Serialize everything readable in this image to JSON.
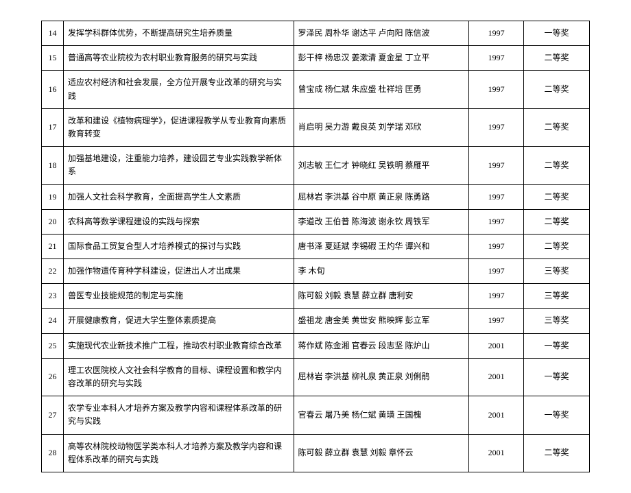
{
  "rows": [
    {
      "num": "14",
      "title": "发挥学科群体优势，不断提高研究生培养质量",
      "people": "罗泽民 周朴华 谢达平 卢向阳 陈信波",
      "year": "1997",
      "award": "一等奖"
    },
    {
      "num": "15",
      "title": "普通高等农业院校为农村职业教育服务的研究与实践",
      "people": "彭干梓 杨忠汉 姜漱清 夏金星 丁立平",
      "year": "1997",
      "award": "二等奖"
    },
    {
      "num": "16",
      "title": "适应农村经济和社会发展，全方位开展专业改革的研究与实践",
      "people": "曾宝成 杨仁斌 朱应盛 杜祥培 匡勇",
      "year": "1997",
      "award": "二等奖"
    },
    {
      "num": "17",
      "title": "改革和建设《植物病理学》，促进课程教学从专业教育向素质教育转变",
      "people": "肖启明 吴力游 戴良英 刘学瑞 邓欣",
      "year": "1997",
      "award": "二等奖"
    },
    {
      "num": "18",
      "title": "加强基地建设，注重能力培养，建设园艺专业实践教学新体系",
      "people": "刘志敏 王仁才 钟晓红 吴铁明 蔡雁平",
      "year": "1997",
      "award": "二等奖"
    },
    {
      "num": "19",
      "title": "加强人文社会科学教育，全面提高学生人文素质",
      "people": "屈林岩 李洪基 谷中原 黄正泉 陈勇路",
      "year": "1997",
      "award": "二等奖"
    },
    {
      "num": "20",
      "title": "农科高等数学课程建设的实践与探索",
      "people": "李道改 王伯普 陈海波 谢永钦 周铁军",
      "year": "1997",
      "award": "二等奖"
    },
    {
      "num": "21",
      "title": "国际食品工贸复合型人才培养模式的探讨与实践",
      "people": "唐书泽 夏延斌 李锡碬 王灼华 谭兴和",
      "year": "1997",
      "award": "二等奖"
    },
    {
      "num": "22",
      "title": "加强作物遗传育种学科建设，促进出人才出成果",
      "people": "李 木旬",
      "year": "1997",
      "award": "三等奖"
    },
    {
      "num": "23",
      "title": "兽医专业技能规范的制定与实施",
      "people": "陈可毅 刘毅 袁慧 薛立群 唐利安",
      "year": "1997",
      "award": "三等奖"
    },
    {
      "num": "24",
      "title": "开展健康教育，促进大学生整体素质提高",
      "people": "盛祖龙 唐金美 黄世安 熊映辉 彭立军",
      "year": "1997",
      "award": "三等奖"
    },
    {
      "num": "25",
      "title": "实施现代农业新技术推广工程，推动农村职业教育综合改革",
      "people": "蒋作斌 陈金湘 官春云 段志坚 陈炉山",
      "year": "2001",
      "award": "一等奖"
    },
    {
      "num": "26",
      "title": "理工农医院校人文社会科学教育的目标、课程设置和教学内容改革的研究与实践",
      "people": "屈林岩 李洪基 柳礼泉 黄正泉 刘俐鹃",
      "year": "2001",
      "award": "一等奖"
    },
    {
      "num": "27",
      "title": "农学专业本科人才培养方案及教学内容和课程体系改革的研究与实践",
      "people": "官春云 屠乃美 杨仁斌 黄璜 王国槐",
      "year": "2001",
      "award": "一等奖"
    },
    {
      "num": "28",
      "title": "高等农林院校动物医学类本科人才培养方案及教学内容和课程体系改革的研究与实践",
      "people": "陈可毅 薛立群 袁慧 刘毅 章怀云",
      "year": "2001",
      "award": "二等奖"
    }
  ]
}
